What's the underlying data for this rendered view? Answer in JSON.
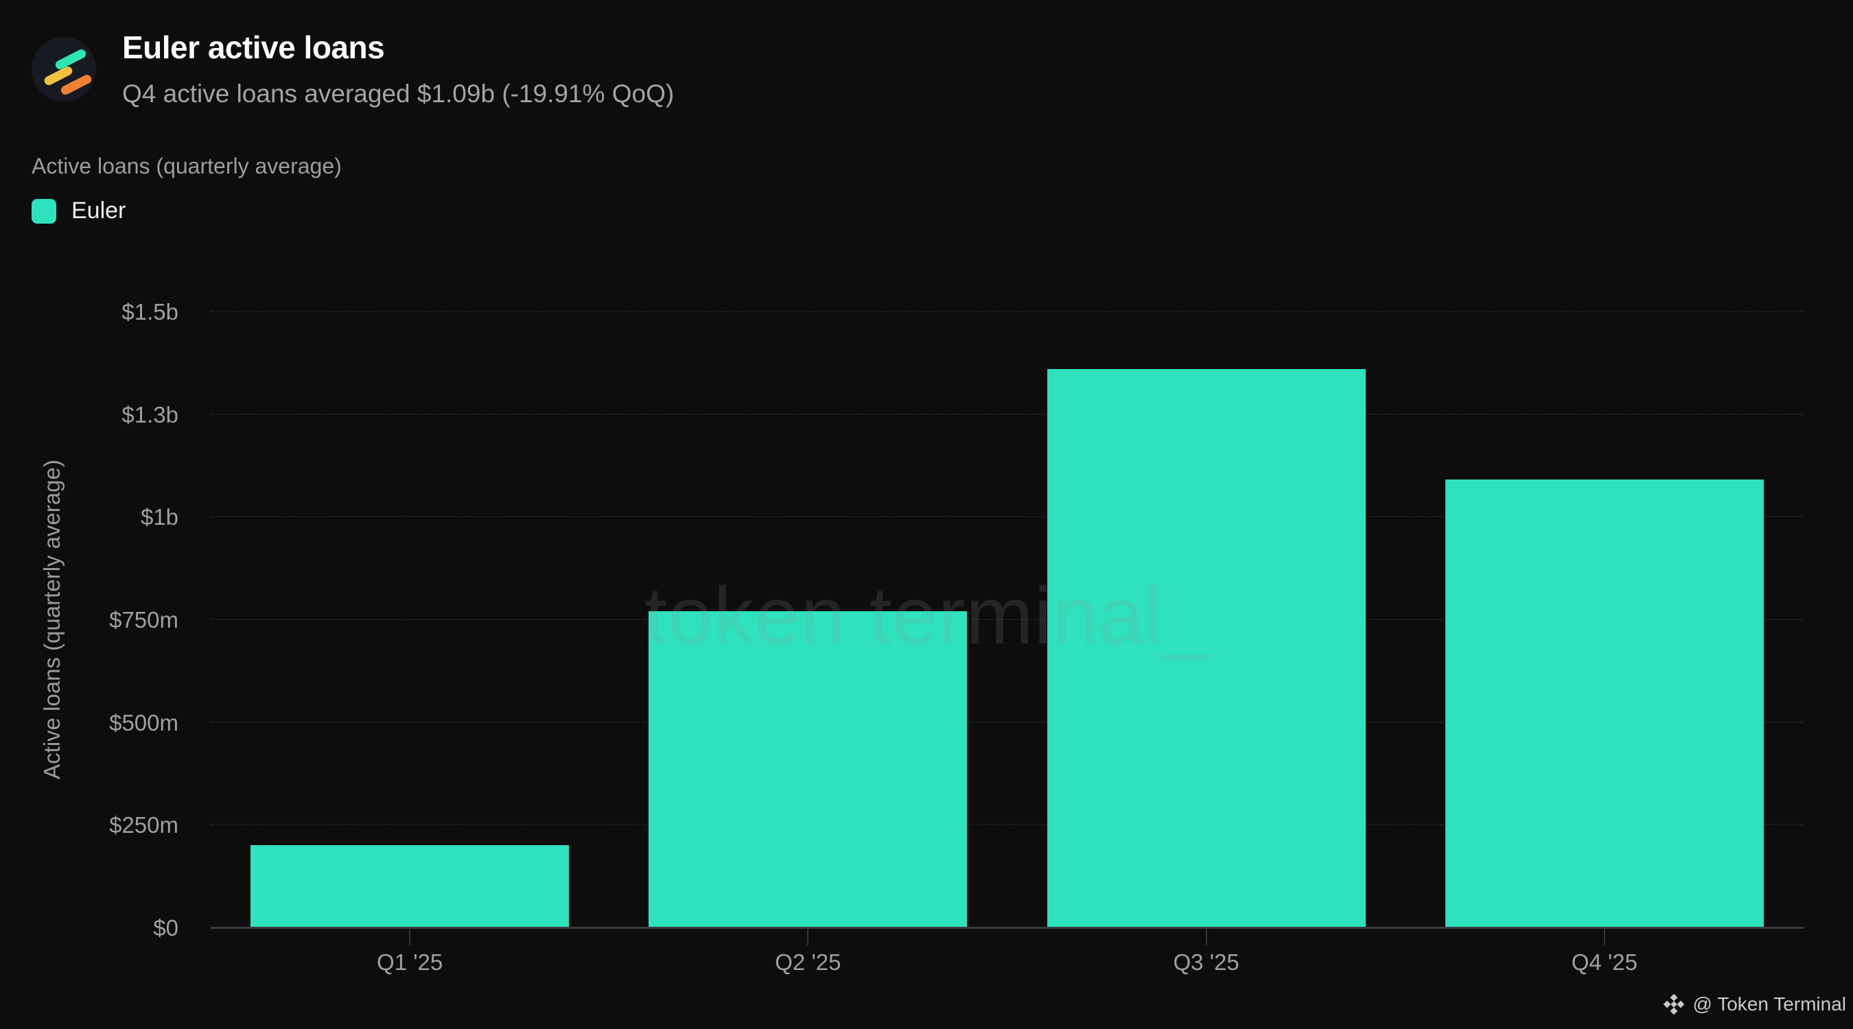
{
  "page": {
    "background": "#0d0d0e"
  },
  "header": {
    "title": "Euler active loans",
    "subtitle": "Q4 active loans averaged $1.09b (-19.91% QoQ)",
    "logo": {
      "icon": "token-terminal-logo",
      "circle_color": "#171a20",
      "stripe_colors": [
        "#2ee6b2",
        "#f0c23e",
        "#f08034"
      ]
    }
  },
  "section": {
    "label": "Active loans (quarterly average)"
  },
  "legend": {
    "items": [
      {
        "label": "Euler",
        "color": "#2de2bd"
      }
    ]
  },
  "watermark": {
    "text": "token terminal_"
  },
  "footer": {
    "icon": "binance-diamond-icon",
    "attribution": "@ Token Terminal"
  },
  "chart_data": {
    "type": "bar",
    "title": "Active loans (quarterly average)",
    "ylabel": "Active loans (quarterly average)",
    "unit": "USD billions",
    "categories": [
      "Q1 '25",
      "Q2 '25",
      "Q3 '25",
      "Q4 '25"
    ],
    "series": [
      {
        "name": "Euler",
        "color": "#2de2bd",
        "values_b": [
          0.2,
          0.77,
          1.36,
          1.09
        ]
      }
    ],
    "ylim_b": [
      0,
      1.5
    ],
    "yticks": [
      {
        "value_b": 0,
        "label": "$0"
      },
      {
        "value_b": 0.25,
        "label": "$250m"
      },
      {
        "value_b": 0.5,
        "label": "$500m"
      },
      {
        "value_b": 0.75,
        "label": "$750m"
      },
      {
        "value_b": 1,
        "label": "$1b"
      },
      {
        "value_b": 1.25,
        "label": "$1.3b"
      },
      {
        "value_b": 1.5,
        "label": "$1.5b"
      }
    ],
    "grid": "horizontal-dotted",
    "legend_position": "top-left",
    "bar_width_frac": 0.8
  }
}
